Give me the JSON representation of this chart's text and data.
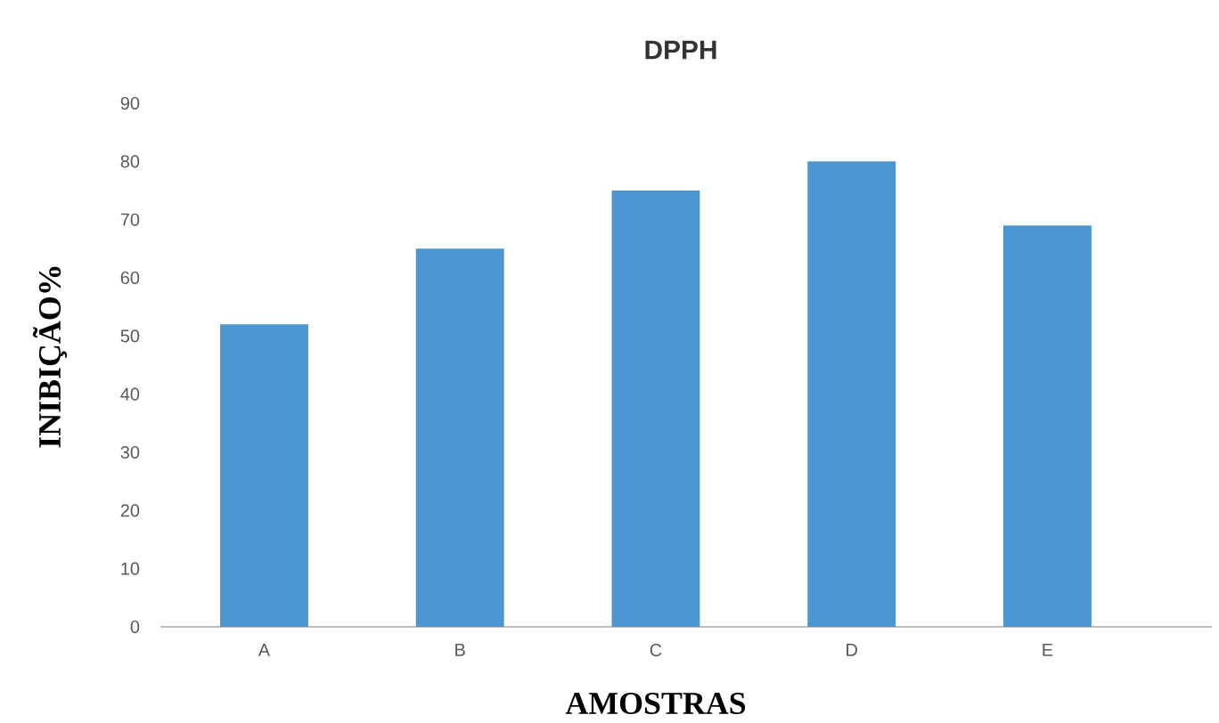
{
  "chart_data": {
    "type": "bar",
    "title": "DPPH",
    "xlabel": "AMOSTRAS",
    "ylabel": "INIBIÇÃO%",
    "categories": [
      "A",
      "B",
      "C",
      "D",
      "E"
    ],
    "values": [
      52,
      65,
      75,
      80,
      69
    ],
    "color": "#4b96d1",
    "ylim": [
      0,
      90
    ],
    "yticks": [
      0,
      10,
      20,
      30,
      40,
      50,
      60,
      70,
      80,
      90
    ],
    "grid": false
  }
}
